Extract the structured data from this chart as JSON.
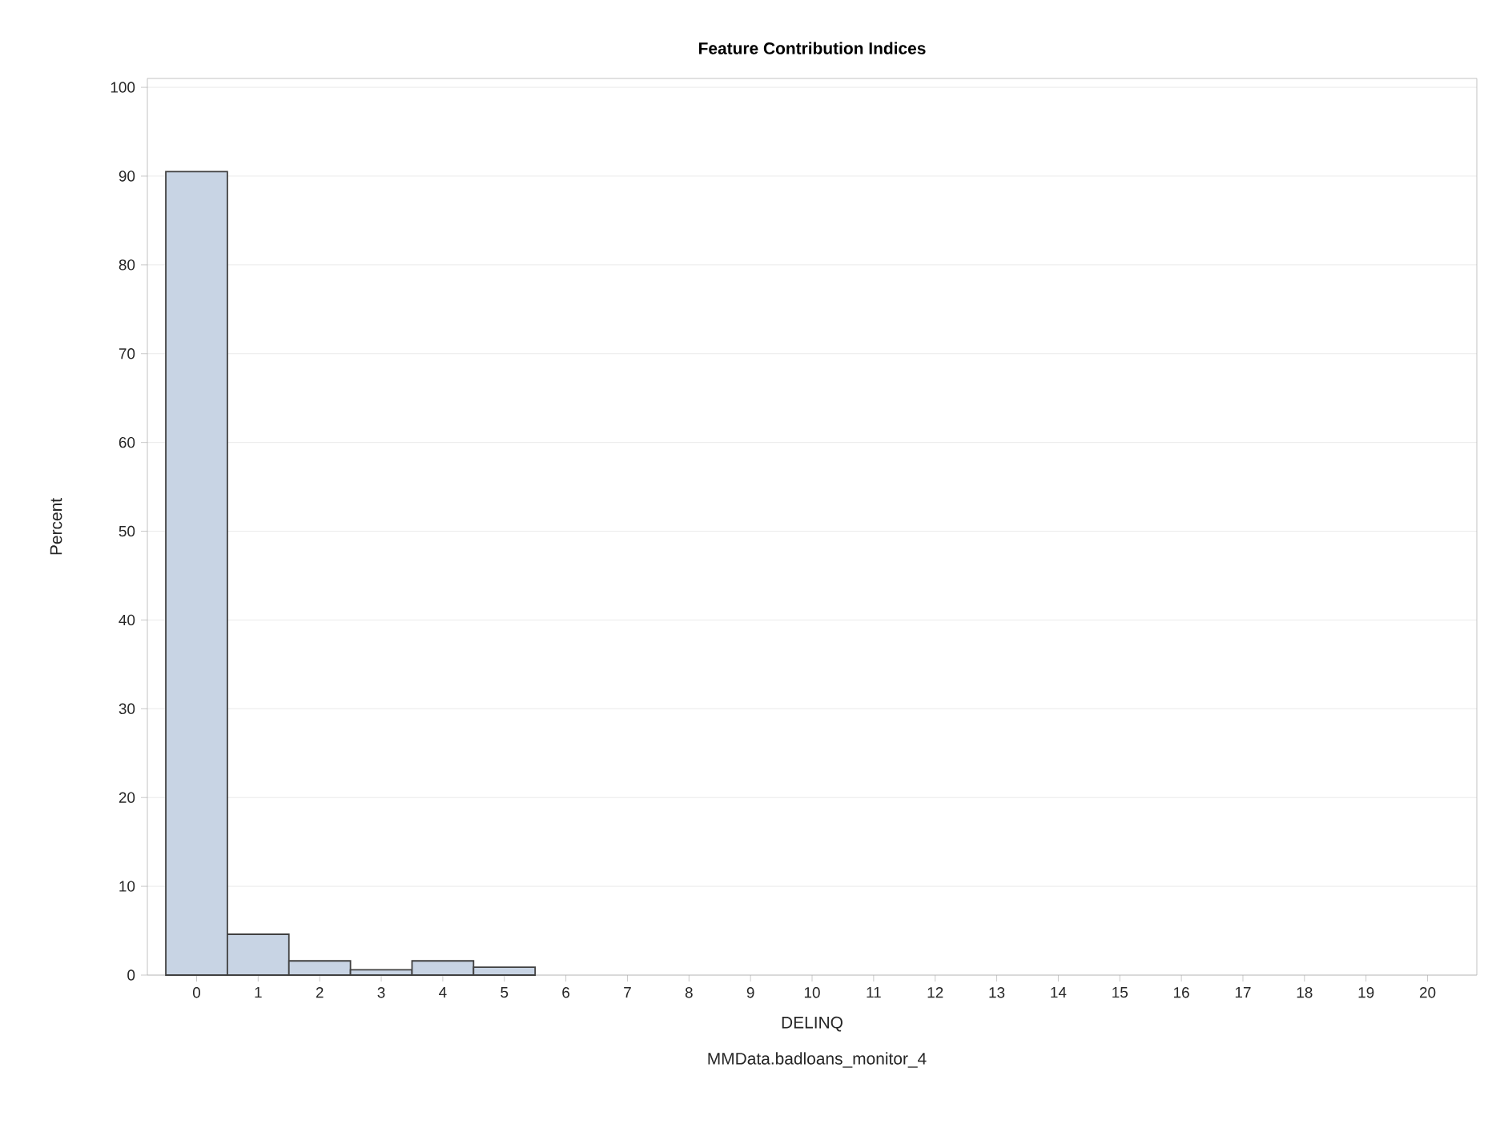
{
  "chart_data": {
    "type": "histogram",
    "title": "Feature Contribution Indices",
    "xlabel": "DELINQ",
    "ylabel": "Percent",
    "bins": [
      -0.5,
      0.5,
      1.5,
      2.5,
      3.5,
      4.5,
      5.5
    ],
    "values": [
      90.5,
      4.6,
      1.6,
      0.6,
      1.6,
      0.9
    ],
    "color": "#c8d4e4",
    "xlim": [
      -0.8,
      20.8
    ],
    "xticks": [
      0,
      1,
      2,
      3,
      4,
      5,
      6,
      7,
      8,
      9,
      10,
      11,
      12,
      13,
      14,
      15,
      16,
      17,
      18,
      19,
      20
    ],
    "ylim": [
      0,
      101
    ],
    "yticks": [
      0,
      10,
      20,
      30,
      40,
      50,
      60,
      70,
      80,
      90,
      100
    ],
    "grid": "y",
    "annotations": [
      "MMData.badloans_monitor_4"
    ]
  }
}
